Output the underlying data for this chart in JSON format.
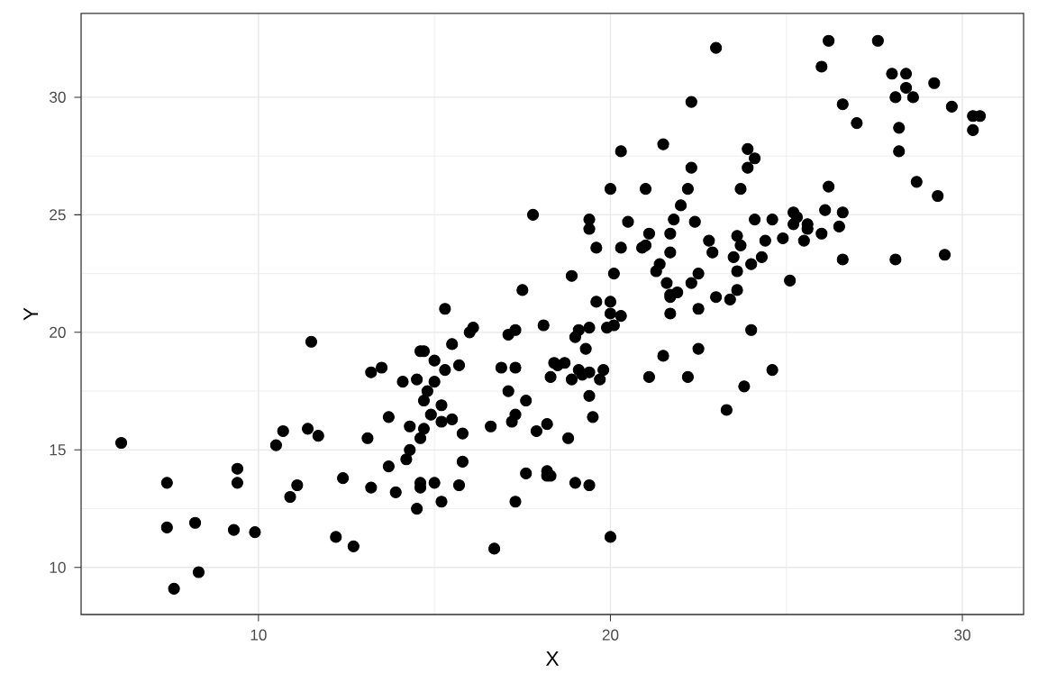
{
  "chart_data": {
    "type": "scatter",
    "xlabel": "X",
    "ylabel": "Y",
    "xlim": [
      4.96,
      31.74
    ],
    "ylim": [
      8.0,
      33.56
    ],
    "xticks": [
      10,
      20,
      30
    ],
    "yticks": [
      10,
      15,
      20,
      25,
      30
    ],
    "grid": true,
    "series": [
      {
        "color": "#000000",
        "x": [
          6.1,
          7.4,
          7.4,
          7.6,
          8.2,
          8.3,
          9.4,
          9.4,
          9.3,
          9.9,
          10.5,
          10.7,
          10.9,
          11.1,
          11.5,
          11.7,
          11.4,
          12.2,
          12.4,
          12.7,
          13.2,
          13.5,
          13.1,
          13.2,
          13.7,
          13.7,
          13.9,
          14.1,
          14.2,
          14.3,
          14.3,
          14.5,
          14.5,
          14.6,
          14.7,
          14.6,
          14.7,
          14.6,
          14.6,
          14.8,
          14.7,
          15.0,
          15.0,
          15.0,
          14.9,
          15.2,
          15.2,
          15.3,
          15.3,
          15.2,
          15.5,
          15.5,
          15.7,
          15.8,
          15.7,
          15.8,
          16.0,
          16.1,
          16.6,
          16.7,
          16.9,
          17.1,
          17.1,
          17.2,
          17.3,
          17.3,
          17.3,
          17.3,
          17.5,
          17.6,
          17.6,
          17.8,
          17.9,
          18.1,
          18.2,
          18.2,
          18.2,
          18.3,
          18.3,
          18.4,
          18.5,
          18.7,
          18.8,
          18.9,
          18.9,
          19.0,
          19.0,
          19.1,
          19.1,
          19.2,
          19.3,
          19.4,
          19.4,
          19.4,
          19.4,
          19.4,
          19.4,
          19.5,
          19.6,
          19.6,
          19.7,
          19.8,
          20.0,
          19.9,
          20.0,
          20.0,
          20.0,
          20.1,
          20.1,
          20.3,
          20.3,
          20.3,
          20.5,
          20.9,
          21.0,
          21.0,
          21.1,
          21.1,
          21.3,
          21.4,
          21.5,
          21.5,
          21.6,
          21.7,
          21.7,
          21.7,
          21.7,
          21.7,
          21.8,
          21.9,
          22.0,
          22.2,
          22.2,
          22.3,
          22.3,
          22.3,
          22.4,
          22.5,
          22.5,
          22.5,
          22.8,
          22.9,
          23.0,
          23.0,
          23.3,
          23.4,
          23.5,
          23.6,
          23.6,
          23.6,
          23.7,
          23.7,
          23.8,
          23.9,
          23.9,
          24.0,
          24.0,
          24.1,
          24.1,
          24.3,
          24.4,
          24.6,
          24.6,
          24.9,
          25.1,
          25.2,
          25.2,
          25.3,
          25.5,
          25.6,
          25.6,
          26.0,
          26.0,
          26.1,
          26.2,
          26.2,
          26.5,
          26.6,
          26.6,
          26.6,
          27.0,
          27.6,
          28.0,
          28.1,
          28.1,
          28.2,
          28.2,
          28.4,
          28.4,
          28.6,
          28.7,
          29.2,
          29.3,
          29.5,
          29.7,
          30.3,
          30.3,
          30.5
        ],
        "values": [
          15.3,
          13.6,
          11.7,
          9.1,
          11.9,
          9.8,
          14.2,
          13.6,
          11.6,
          11.5,
          15.2,
          15.8,
          13.0,
          13.5,
          19.6,
          15.6,
          15.9,
          11.3,
          13.8,
          10.9,
          18.3,
          18.5,
          15.5,
          13.4,
          16.4,
          14.3,
          13.2,
          17.9,
          14.6,
          15.0,
          16.0,
          18.0,
          12.5,
          19.2,
          19.2,
          15.5,
          15.9,
          13.6,
          13.4,
          17.5,
          17.1,
          17.9,
          18.8,
          13.6,
          16.5,
          16.9,
          12.8,
          21.0,
          18.4,
          16.2,
          19.5,
          16.3,
          18.6,
          15.7,
          13.5,
          14.5,
          20.0,
          20.2,
          16.0,
          10.8,
          18.5,
          17.5,
          19.9,
          16.2,
          16.5,
          18.5,
          12.8,
          20.1,
          21.8,
          17.1,
          14.0,
          25.0,
          15.8,
          20.3,
          16.1,
          13.9,
          14.1,
          13.9,
          18.1,
          18.7,
          18.6,
          18.7,
          15.5,
          22.4,
          18.0,
          19.8,
          13.6,
          20.1,
          18.4,
          18.2,
          19.3,
          24.8,
          24.4,
          17.3,
          20.2,
          13.5,
          18.3,
          16.4,
          21.3,
          23.6,
          18.0,
          18.4,
          11.3,
          20.2,
          26.1,
          21.3,
          20.8,
          20.3,
          22.5,
          27.7,
          20.7,
          23.6,
          24.7,
          23.6,
          26.1,
          23.7,
          24.2,
          18.1,
          22.6,
          22.9,
          28.0,
          19.0,
          22.1,
          21.6,
          20.8,
          24.2,
          23.4,
          21.5,
          24.8,
          21.7,
          25.4,
          26.1,
          18.1,
          27.0,
          29.8,
          22.1,
          24.7,
          19.3,
          22.5,
          21.0,
          23.9,
          23.4,
          32.1,
          21.5,
          16.7,
          21.4,
          23.2,
          21.8,
          22.6,
          24.1,
          26.1,
          23.7,
          17.7,
          27.0,
          27.8,
          20.1,
          22.9,
          24.8,
          27.4,
          23.2,
          23.9,
          18.4,
          24.8,
          24.0,
          22.2,
          24.6,
          25.1,
          24.9,
          23.9,
          24.6,
          24.4,
          31.3,
          24.2,
          25.2,
          32.4,
          26.2,
          24.5,
          29.7,
          23.1,
          25.1,
          28.9,
          32.4,
          31.0,
          23.1,
          30.0,
          27.7,
          28.7,
          31.0,
          30.4,
          30.0,
          26.4,
          30.6,
          25.8,
          23.3,
          29.6,
          28.6,
          29.2,
          29.2
        ]
      }
    ]
  }
}
